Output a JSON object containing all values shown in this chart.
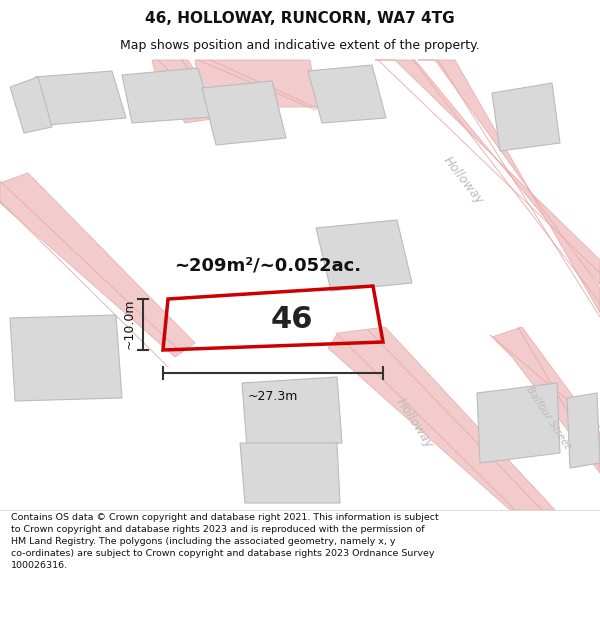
{
  "title": "46, HOLLOWAY, RUNCORN, WA7 4TG",
  "subtitle": "Map shows position and indicative extent of the property.",
  "footer": "Contains OS data © Crown copyright and database right 2021. This information is subject\nto Crown copyright and database rights 2023 and is reproduced with the permission of\nHM Land Registry. The polygons (including the associated geometry, namely x, y\nco-ordinates) are subject to Crown copyright and database rights 2023 Ordnance Survey\n100026316.",
  "area_label": "~209m²/~0.052ac.",
  "width_label": "~27.3m",
  "height_label": "~10.0m",
  "number_label": "46",
  "bg_color": "#ffffff",
  "map_bg": "#f7f7f7",
  "road_fill": "#f2cccc",
  "road_edge": "#e8a8a8",
  "bldg_fill": "#d9d9d9",
  "bldg_edge": "#bbbbbb",
  "plot_edge": "#cc0000",
  "plot_lw": 2.5,
  "dim_color": "#333333",
  "road_label_color": "#bbbbbb",
  "title_fs": 11,
  "subtitle_fs": 9,
  "footer_fs": 6.8,
  "area_fs": 13,
  "number_fs": 22,
  "dim_fs": 9,
  "road_fs": 9
}
